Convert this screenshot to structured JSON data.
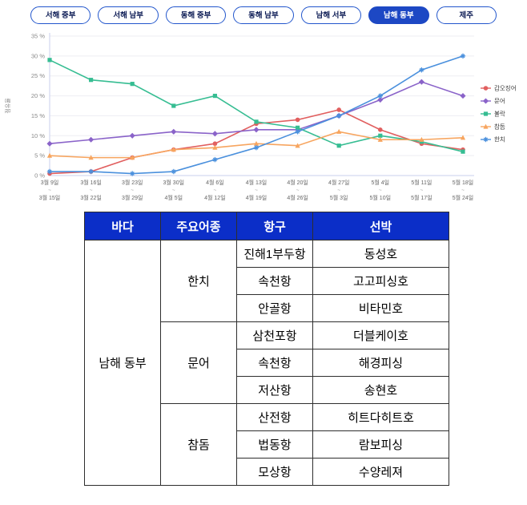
{
  "tabs": {
    "items": [
      {
        "label": "서해 중부",
        "selected": false
      },
      {
        "label": "서해 남부",
        "selected": false
      },
      {
        "label": "동해 중부",
        "selected": false
      },
      {
        "label": "동해 남부",
        "selected": false
      },
      {
        "label": "남해 서부",
        "selected": false
      },
      {
        "label": "남해 동부",
        "selected": true
      },
      {
        "label": "제주",
        "selected": false
      }
    ]
  },
  "chart_data": {
    "type": "line",
    "title": "",
    "xlabel": "",
    "ylabel": "점유율",
    "ylim": [
      0,
      35
    ],
    "y_tick_step": 5,
    "y_tick_suffix": " %",
    "grid": true,
    "legend_position": "right",
    "x_label_separator": "~",
    "x_labels": [
      {
        "start": "3월 9일",
        "end": "3월 15일"
      },
      {
        "start": "3월 16일",
        "end": "3월 22일"
      },
      {
        "start": "3월 23일",
        "end": "3월 29일"
      },
      {
        "start": "3월 30일",
        "end": "4월 5일"
      },
      {
        "start": "4월 6일",
        "end": "4월 12일"
      },
      {
        "start": "4월 13일",
        "end": "4월 19일"
      },
      {
        "start": "4월 20일",
        "end": "4월 26일"
      },
      {
        "start": "4월 27일",
        "end": "5월 3일"
      },
      {
        "start": "5월 4일",
        "end": "5월 10일"
      },
      {
        "start": "5월 11일",
        "end": "5월 17일"
      },
      {
        "start": "5월 18일",
        "end": "5월 24일"
      }
    ],
    "series": [
      {
        "name": "갑오징어",
        "color": "#e15f5f",
        "marker": "circle",
        "values": [
          0.5,
          1,
          4.5,
          6.5,
          8,
          13,
          14,
          16.5,
          11.5,
          8,
          6.5
        ]
      },
      {
        "name": "문어",
        "color": "#8a63c9",
        "marker": "diamond",
        "values": [
          8,
          9,
          10,
          11,
          10.5,
          11.5,
          11.5,
          15,
          19,
          23.5,
          20
        ]
      },
      {
        "name": "볼락",
        "color": "#36bd92",
        "marker": "square",
        "values": [
          29,
          24,
          23,
          17.5,
          20,
          13.5,
          12,
          7.5,
          10,
          8.5,
          6
        ]
      },
      {
        "name": "참돔",
        "color": "#f7a55f",
        "marker": "triangle",
        "values": [
          5,
          4.5,
          4.5,
          6.5,
          7,
          8,
          7.5,
          11,
          9,
          9,
          9.5
        ]
      },
      {
        "name": "한치",
        "color": "#4a90dd",
        "marker": "star",
        "values": [
          1,
          1,
          0.5,
          1,
          4,
          7,
          11,
          15,
          20,
          26.5,
          30
        ]
      }
    ]
  },
  "table": {
    "headers": [
      "바다",
      "주요어종",
      "항구",
      "선박"
    ],
    "sea": "남해 동부",
    "groups": [
      {
        "species": "한치",
        "rows": [
          {
            "port": "진해1부두항",
            "ship": "동성호"
          },
          {
            "port": "속천항",
            "ship": "고고피싱호"
          },
          {
            "port": "안골항",
            "ship": "비타민호"
          }
        ]
      },
      {
        "species": "문어",
        "rows": [
          {
            "port": "삼천포항",
            "ship": "더블케이호"
          },
          {
            "port": "속천항",
            "ship": "해경피싱"
          },
          {
            "port": "저산항",
            "ship": "송현호"
          }
        ]
      },
      {
        "species": "참돔",
        "rows": [
          {
            "port": "산전항",
            "ship": "히트다히트호"
          },
          {
            "port": "법동항",
            "ship": "람보피싱"
          },
          {
            "port": "모상항",
            "ship": "수양레져"
          }
        ]
      }
    ]
  },
  "colors": {
    "selected_tab_bg": "#1d48c4",
    "tab_border": "#2256cc",
    "tab_text": "#0d1c55",
    "table_header_bg": "#0b2ec8",
    "grid_line": "#ededf2",
    "axis_line": "#c9cfee"
  }
}
